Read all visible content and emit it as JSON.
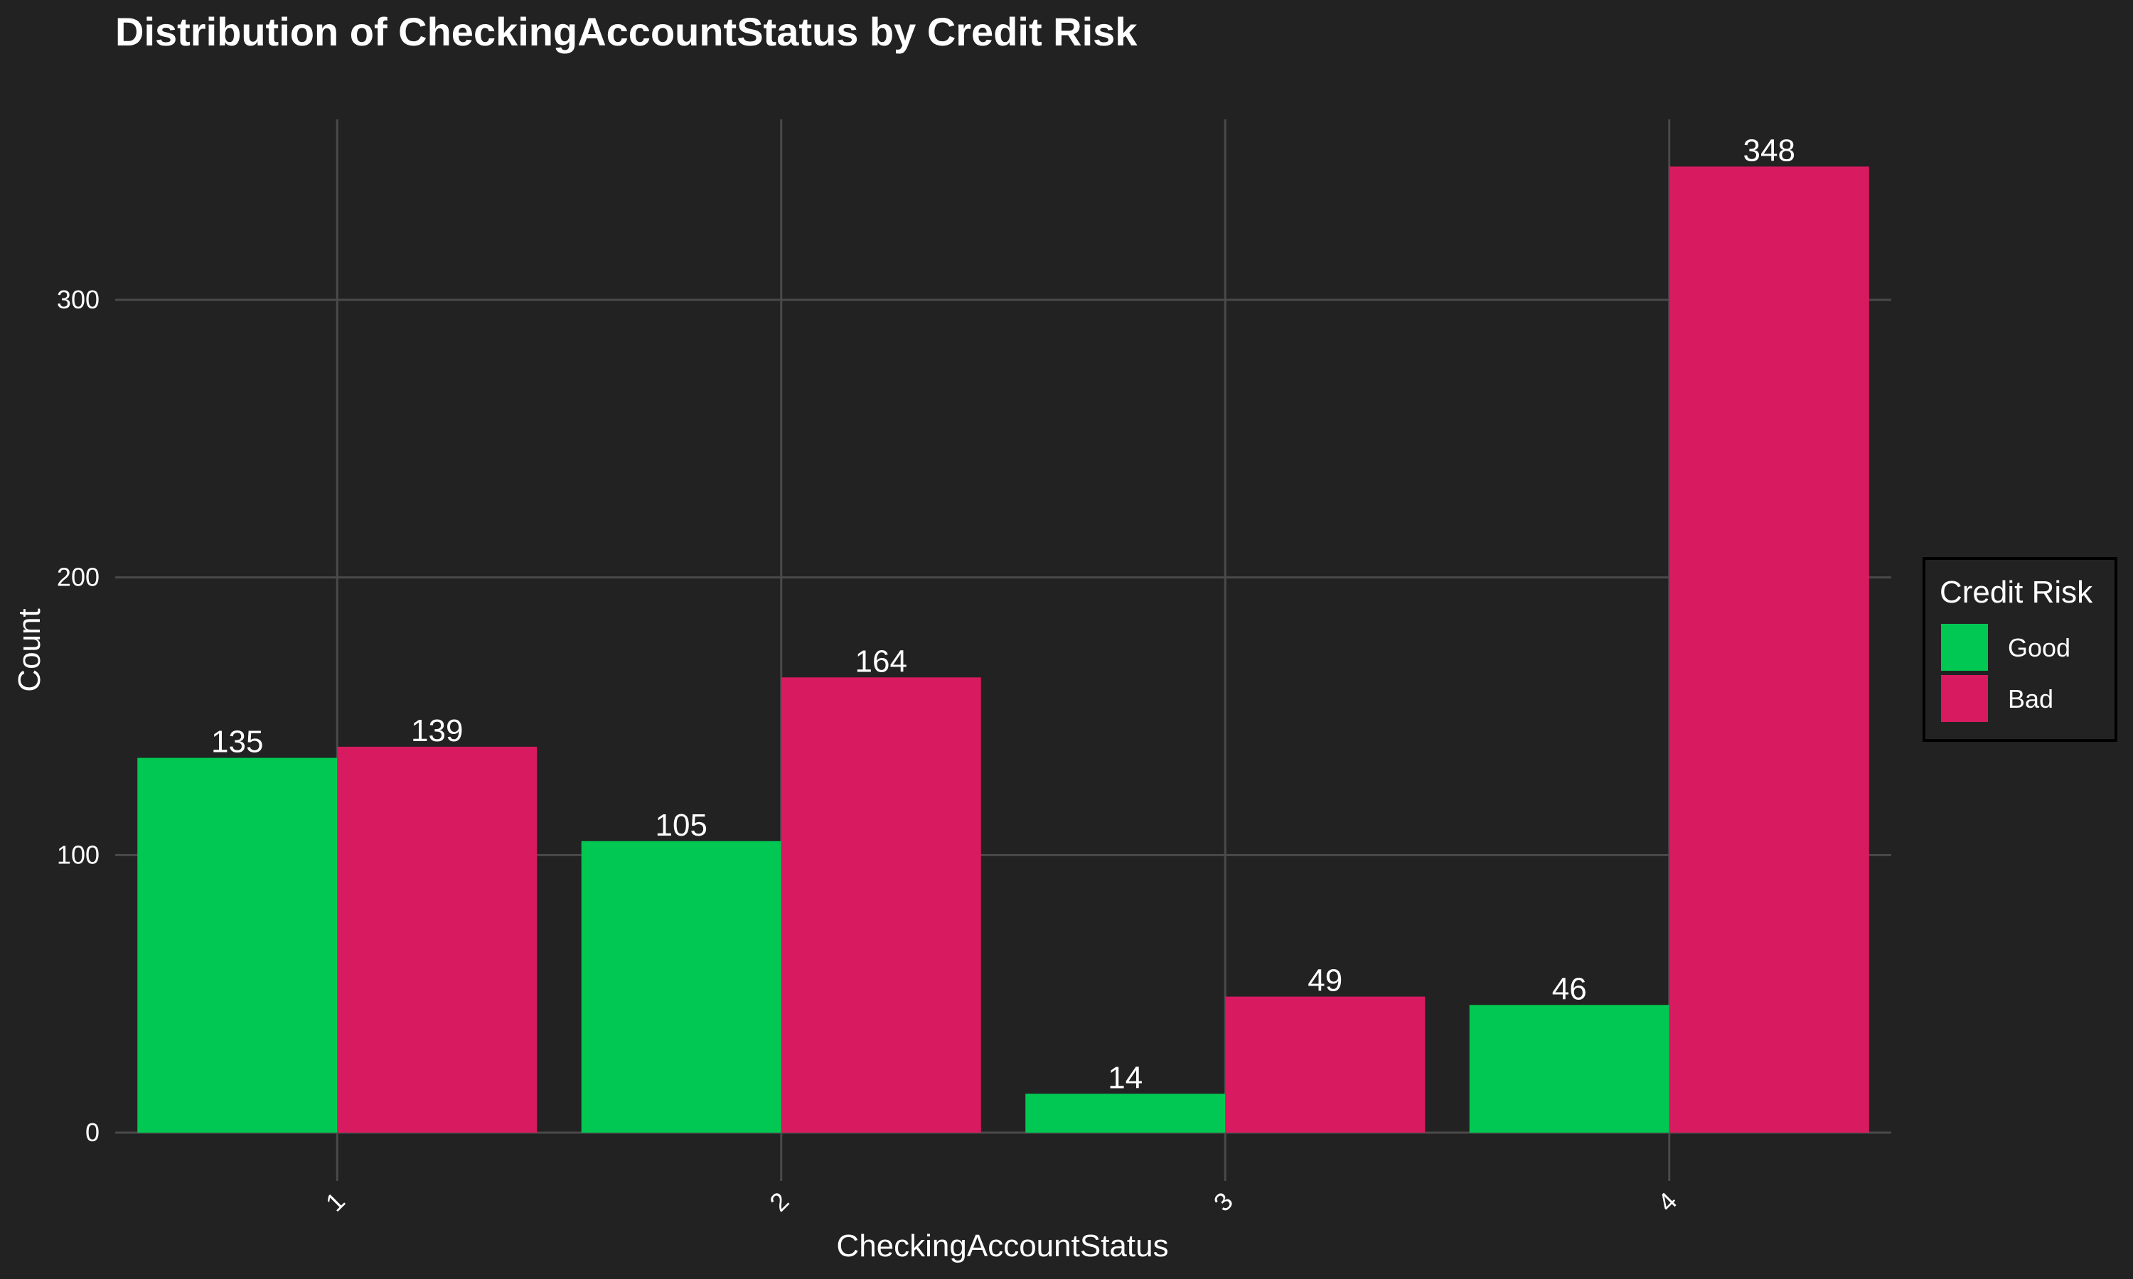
{
  "chart_data": {
    "type": "bar",
    "title": "Distribution of CheckingAccountStatus by Credit Risk",
    "xlabel": "CheckingAccountStatus",
    "ylabel": "Count",
    "categories": [
      "1",
      "2",
      "3",
      "4"
    ],
    "series": [
      {
        "name": "Good",
        "values": [
          135,
          105,
          14,
          46
        ],
        "color": "#00c853"
      },
      {
        "name": "Bad",
        "values": [
          139,
          164,
          49,
          348
        ],
        "color": "#d81b60"
      }
    ],
    "ylim": [
      0,
      365
    ],
    "yticks": [
      0,
      100,
      200,
      300
    ],
    "grid": true,
    "legend": {
      "title": "Credit Risk",
      "position": "right"
    },
    "background": "#222222"
  }
}
